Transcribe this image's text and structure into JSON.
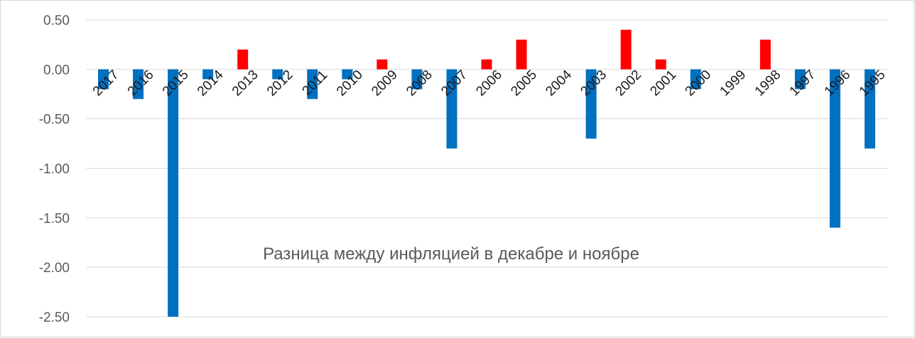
{
  "chart_data": {
    "type": "bar",
    "title": "Разница между инфляцией в декабре и ноябре",
    "xlabel": "",
    "ylabel": "",
    "ylim": [
      -2.5,
      0.5
    ],
    "yticks": [
      "0.50",
      "0.00",
      "-0.50",
      "-1.00",
      "-1.50",
      "-2.00",
      "-2.50"
    ],
    "grid": true,
    "legend": "none",
    "colors": {
      "negative": "#0070c0",
      "positive": "#ff0000",
      "grid": "#d9d9d9"
    },
    "categories": [
      "2017",
      "2016",
      "2015",
      "2014",
      "2013",
      "2012",
      "2011",
      "2010",
      "2009",
      "2008",
      "2007",
      "2006",
      "2005",
      "2004",
      "2003",
      "2002",
      "2001",
      "2000",
      "1999",
      "1998",
      "1997",
      "1996",
      "1995"
    ],
    "values": [
      -0.2,
      -0.3,
      -2.5,
      -0.1,
      0.2,
      -0.1,
      -0.3,
      -0.1,
      0.1,
      -0.2,
      -0.8,
      0.1,
      0.3,
      0.0,
      -0.7,
      0.4,
      0.1,
      -0.2,
      0.0,
      0.3,
      -0.2,
      -1.6,
      -0.8
    ]
  }
}
